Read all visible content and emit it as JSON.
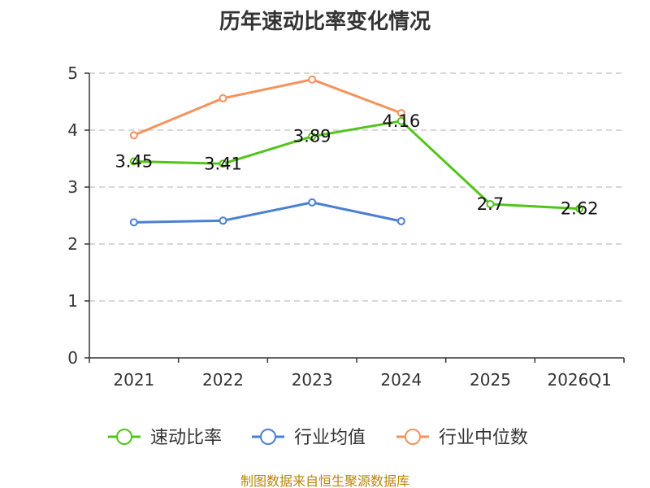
{
  "title": "历年速动比率变化情况",
  "source": "制图数据来自恒生聚源数据库",
  "colors": {
    "grid": "#cccccc",
    "axis": "#333333"
  },
  "chart_data": {
    "type": "line",
    "title": "历年速动比率变化情况",
    "xlabel": "",
    "ylabel": "",
    "categories": [
      "2021",
      "2022",
      "2023",
      "2024",
      "2025",
      "2026Q1"
    ],
    "ylim": [
      0,
      5
    ],
    "yticks": [
      0,
      1,
      2,
      3,
      4,
      5
    ],
    "grid": true,
    "legend": "bottom",
    "series": [
      {
        "name": "速动比率",
        "color": "#52c41a",
        "values": [
          3.45,
          3.41,
          3.89,
          4.16,
          2.7,
          2.62
        ],
        "labels": [
          "3.45",
          "3.41",
          "3.89",
          "4.16",
          "2.7",
          "2.62"
        ]
      },
      {
        "name": "行业均值",
        "color": "#4a7fd4",
        "values": [
          2.38,
          2.41,
          2.73,
          2.4,
          null,
          null
        ]
      },
      {
        "name": "行业中位数",
        "color": "#f4935c",
        "values": [
          3.91,
          4.56,
          4.89,
          4.3,
          null,
          null
        ]
      }
    ]
  }
}
